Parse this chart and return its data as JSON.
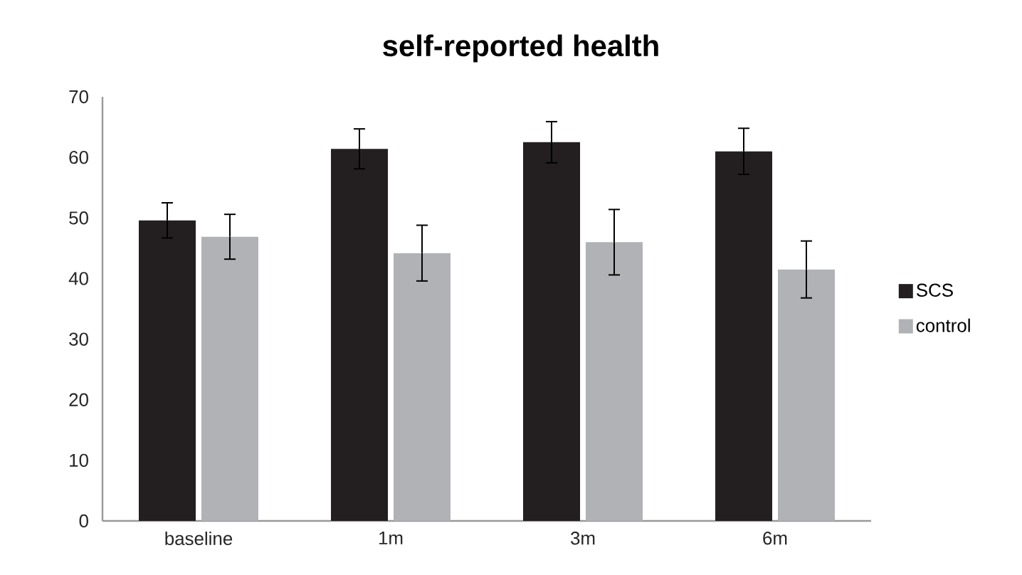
{
  "chart_data": {
    "type": "bar",
    "title": "self-reported health",
    "categories": [
      "baseline",
      "1m",
      "3m",
      "6m"
    ],
    "series": [
      {
        "name": "SCS",
        "color": "#231f20",
        "values": [
          49.6,
          61.4,
          62.5,
          61.0
        ],
        "errors": [
          2.9,
          3.3,
          3.4,
          3.8
        ]
      },
      {
        "name": "control",
        "color": "#b1b2b5",
        "values": [
          46.9,
          44.2,
          46.0,
          41.5
        ],
        "errors": [
          3.7,
          4.6,
          5.4,
          4.7
        ]
      }
    ],
    "ylim": [
      0,
      70
    ],
    "yticks": [
      0,
      10,
      20,
      30,
      40,
      50,
      60,
      70
    ],
    "legend": "right"
  }
}
